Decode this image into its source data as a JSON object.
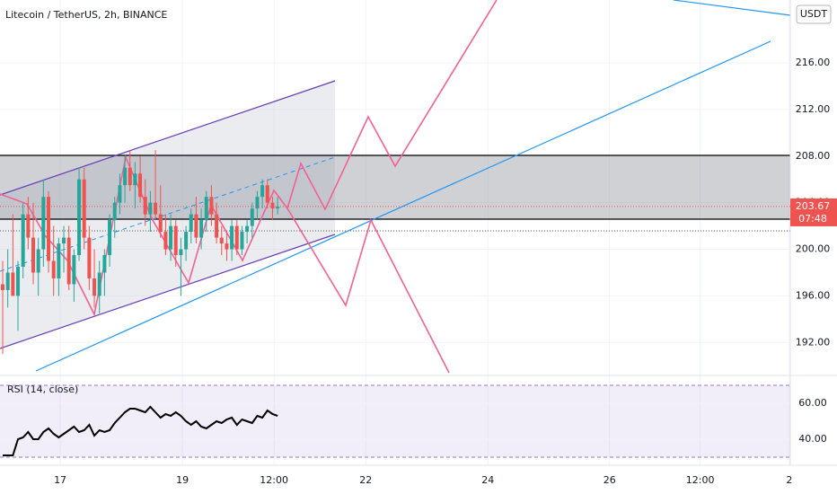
{
  "chart_data": {
    "type": "candlestick",
    "title": "Litecoin / TetherUS, 2h, BINANCE",
    "currency": "USDT",
    "up_color": "#26a69a",
    "down_color": "#ef5350",
    "candles": [
      [
        197,
        199,
        191,
        196.5
      ],
      [
        196.5,
        200,
        195,
        198
      ],
      [
        198,
        203,
        196,
        196
      ],
      [
        196,
        199,
        193,
        198.5
      ],
      [
        198.5,
        204,
        197.5,
        203
      ],
      [
        203,
        204.5,
        200,
        201
      ],
      [
        201,
        204,
        197,
        198
      ],
      [
        198,
        201,
        196,
        200
      ],
      [
        200,
        206,
        198.5,
        204.5
      ],
      [
        204.5,
        205,
        198,
        199
      ],
      [
        199,
        202,
        196,
        197.5
      ],
      [
        197.5,
        201,
        196,
        200.5
      ],
      [
        200.5,
        202,
        198,
        201
      ],
      [
        201,
        202,
        196.5,
        197
      ],
      [
        197,
        200,
        195.5,
        199.5
      ],
      [
        199.5,
        207,
        199,
        206
      ],
      [
        206,
        207,
        200,
        201
      ],
      [
        201,
        202,
        196.5,
        197.5
      ],
      [
        197.5,
        200,
        195,
        196
      ],
      [
        196,
        199,
        194.5,
        198
      ],
      [
        198,
        200,
        196,
        199.5
      ],
      [
        199.5,
        203,
        198.5,
        202.5
      ],
      [
        202.5,
        204.5,
        201,
        204
      ],
      [
        204,
        206.5,
        203,
        205.5
      ],
      [
        205.5,
        208,
        204,
        207
      ],
      [
        207,
        208.5,
        205,
        205.5
      ],
      [
        205.5,
        207.5,
        203.5,
        206.5
      ],
      [
        206.5,
        208,
        204,
        204.5
      ],
      [
        204.5,
        206,
        202,
        203
      ],
      [
        203,
        205,
        201.5,
        204
      ],
      [
        204,
        208.5,
        202.5,
        203
      ],
      [
        203,
        205.5,
        201,
        201.5
      ],
      [
        201.5,
        203,
        199.5,
        200
      ],
      [
        200,
        203,
        199,
        202
      ],
      [
        202,
        202.5,
        198.5,
        199.5
      ],
      [
        199.5,
        201,
        196,
        200
      ],
      [
        200,
        202,
        199,
        201.5
      ],
      [
        201.5,
        203.5,
        200.5,
        203
      ],
      [
        203,
        204.5,
        200.5,
        201
      ],
      [
        201,
        203.5,
        200,
        202.5
      ],
      [
        202.5,
        205,
        201.5,
        204.5
      ],
      [
        204.5,
        205.5,
        202,
        203
      ],
      [
        203,
        204,
        200.5,
        201
      ],
      [
        201,
        202,
        199.5,
        200.5
      ],
      [
        200.5,
        201.5,
        199,
        200
      ],
      [
        200,
        202.5,
        199,
        202
      ],
      [
        202,
        202.5,
        199.5,
        200
      ],
      [
        200,
        202,
        199.5,
        201.5
      ],
      [
        201.5,
        202.5,
        200.5,
        202
      ],
      [
        202,
        204,
        201,
        203.5
      ],
      [
        203.5,
        205,
        202.5,
        204.5
      ],
      [
        204.5,
        206,
        203.5,
        205.5
      ],
      [
        205.5,
        206,
        203.5,
        204
      ],
      [
        204,
        204.5,
        202.5,
        203.5
      ],
      [
        203.5,
        204.5,
        203,
        203.67
      ]
    ],
    "last_price": 203.67,
    "countdown": "07:48",
    "ylim": [
      189.4,
      221.4
    ],
    "yticks": [
      {
        "value": 192,
        "label": "192.00"
      },
      {
        "value": 196,
        "label": "196.00"
      },
      {
        "value": 200,
        "label": "200.00"
      },
      {
        "value": 204,
        "label": "204.00"
      },
      {
        "value": 208,
        "label": "208.00"
      },
      {
        "value": 212,
        "label": "212.00"
      },
      {
        "value": 216,
        "label": "216.00"
      }
    ],
    "xlim": [
      -0.53,
      154.7
    ],
    "xticks": [
      {
        "value": 11.3,
        "label": "17"
      },
      {
        "value": 35.3,
        "label": "19"
      },
      {
        "value": 53.3,
        "label": "12:00"
      },
      {
        "value": 71.3,
        "label": "22"
      },
      {
        "value": 95.3,
        "label": "24"
      },
      {
        "value": 119.2,
        "label": "26"
      },
      {
        "value": 137,
        "label": "12:00"
      },
      {
        "value": 154.5,
        "label": "2"
      }
    ],
    "rsi": {
      "title": "RSI (14, close)",
      "color": "#000000",
      "values": [
        31,
        31,
        31,
        40,
        41,
        44,
        40,
        40,
        44,
        46,
        43,
        41,
        43,
        45,
        47,
        44,
        45,
        48,
        42,
        45,
        44,
        45,
        49,
        52,
        55,
        57,
        57,
        56,
        55,
        58,
        55,
        52,
        54,
        53,
        55,
        53,
        50,
        48,
        50,
        47,
        46,
        48,
        50,
        49,
        51,
        52,
        48,
        51,
        50,
        49,
        53,
        52,
        56,
        54,
        53
      ],
      "ylim": [
        27,
        72
      ],
      "yticks": [
        {
          "value": 40,
          "label": "40.00"
        },
        {
          "value": 60,
          "label": "60.00"
        }
      ],
      "bands": [
        30,
        70
      ]
    }
  }
}
